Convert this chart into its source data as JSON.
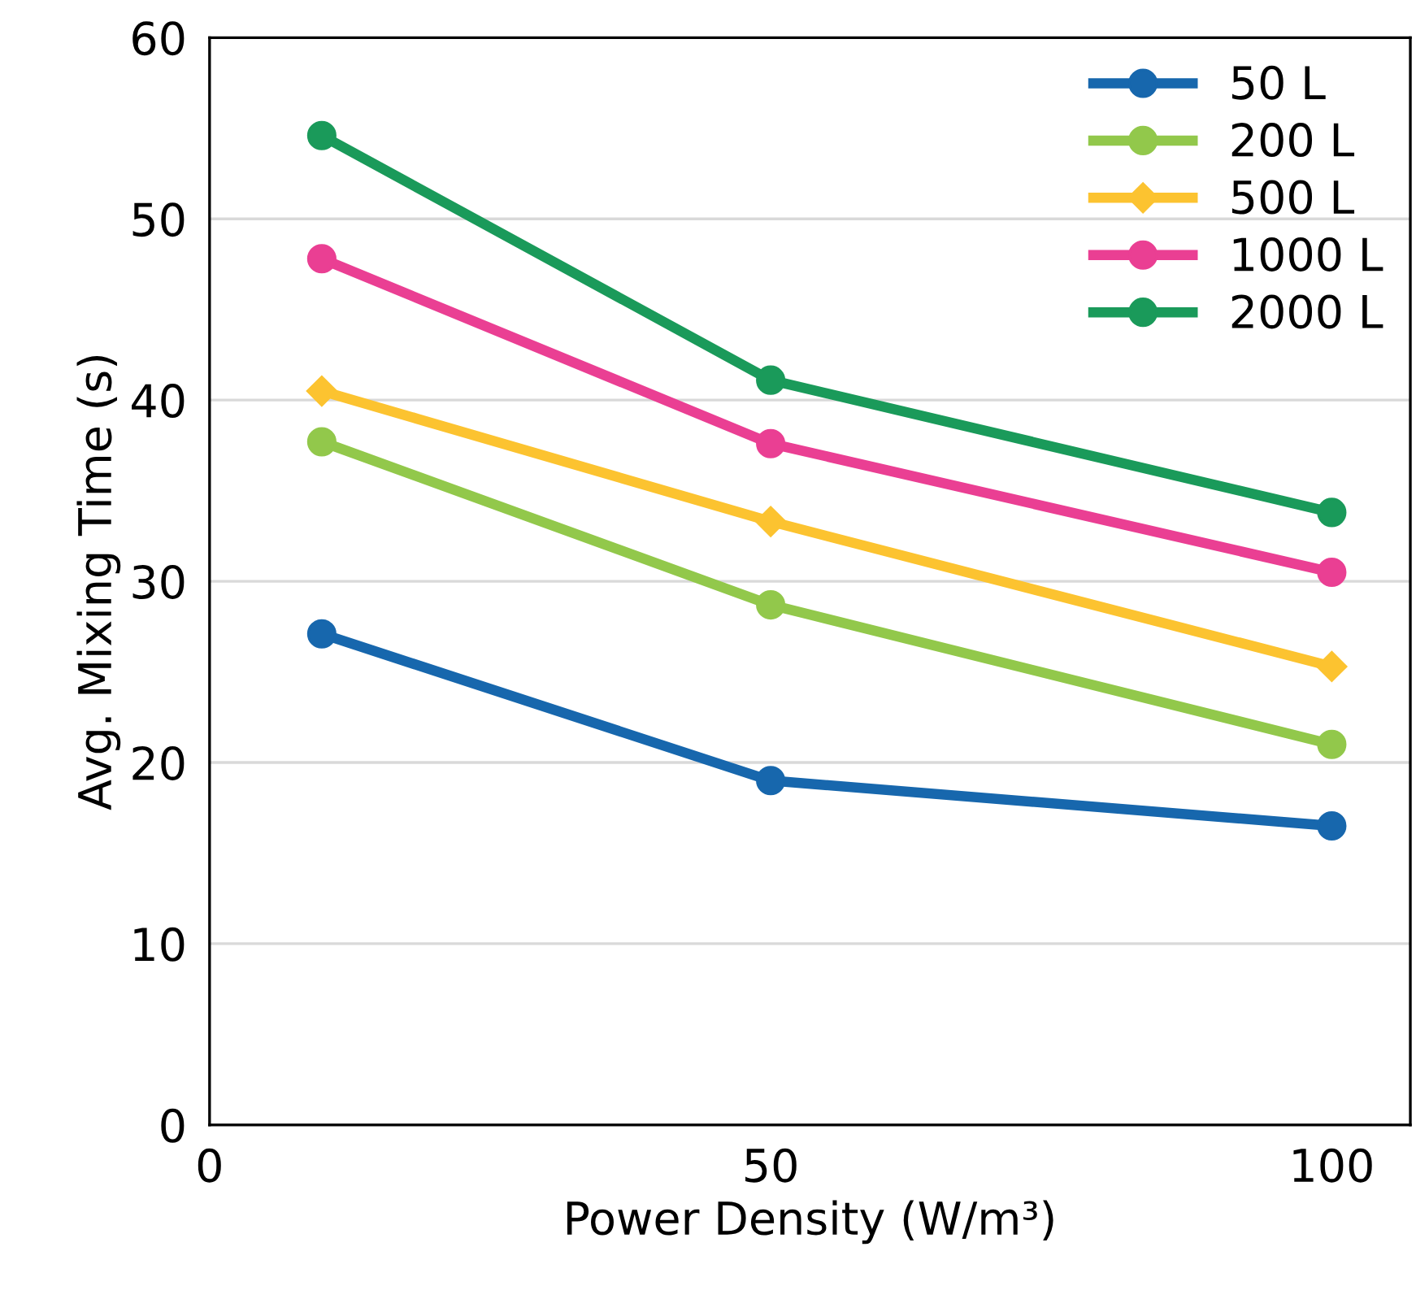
{
  "chart_data": {
    "type": "line",
    "xlabel": "Power Density (W/m³)",
    "ylabel": "Avg. Mixing Time (s)",
    "x": [
      10,
      50,
      100
    ],
    "xlim": [
      0,
      107
    ],
    "xticks": [
      0,
      50,
      100
    ],
    "ylim": [
      0,
      60
    ],
    "yticks": [
      0,
      10,
      20,
      30,
      40,
      50,
      60
    ],
    "grid": "y",
    "legend": "top right",
    "line_style": "solid",
    "series": [
      {
        "name": "50 L",
        "color": "#1767ad",
        "marker": "circle",
        "values": [
          27.1,
          19.0,
          16.5
        ]
      },
      {
        "name": "200 L",
        "color": "#92c84b",
        "marker": "circle",
        "values": [
          37.7,
          28.7,
          21.0
        ]
      },
      {
        "name": "500 L",
        "color": "#fcc330",
        "marker": "diamond",
        "values": [
          40.5,
          33.3,
          25.3
        ]
      },
      {
        "name": "1000 L",
        "color": "#ea3f93",
        "marker": "circle",
        "values": [
          47.8,
          37.6,
          30.5
        ]
      },
      {
        "name": "2000 L",
        "color": "#1a9a5a",
        "marker": "circle",
        "values": [
          54.6,
          41.1,
          33.8
        ]
      }
    ]
  }
}
